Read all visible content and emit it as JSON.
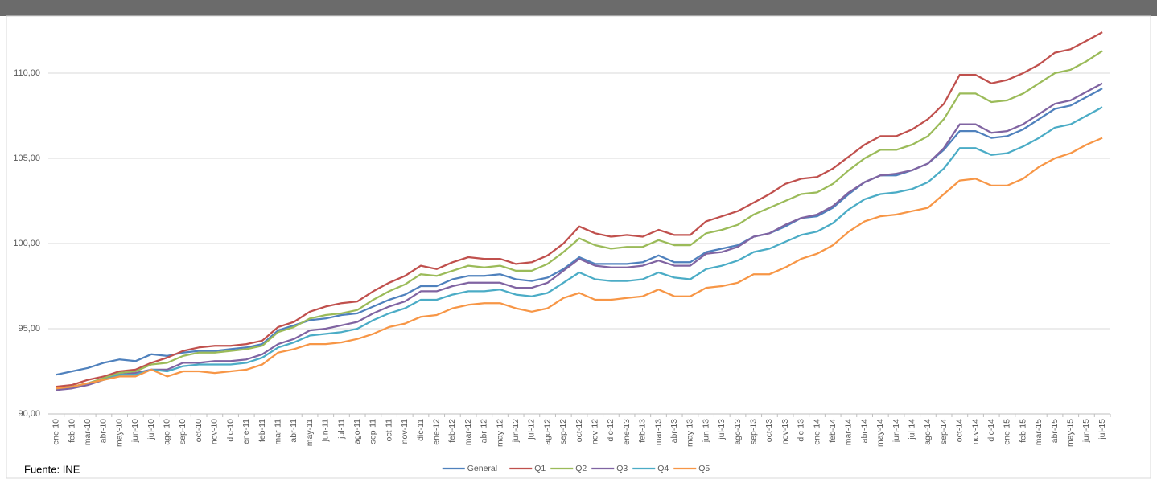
{
  "chart_data": {
    "type": "line",
    "categories": [
      "ene-10",
      "feb-10",
      "mar-10",
      "abr-10",
      "may-10",
      "jun-10",
      "jul-10",
      "ago-10",
      "sep-10",
      "oct-10",
      "nov-10",
      "dic-10",
      "ene-11",
      "feb-11",
      "mar-11",
      "abr-11",
      "may-11",
      "jun-11",
      "jul-11",
      "ago-11",
      "sep-11",
      "oct-11",
      "nov-11",
      "dic-11",
      "ene-12",
      "feb-12",
      "mar-12",
      "abr-12",
      "may-12",
      "jun-12",
      "jul-12",
      "ago-12",
      "sep-12",
      "oct-12",
      "nov-12",
      "dic-12",
      "ene-13",
      "feb-13",
      "mar-13",
      "abr-13",
      "may-13",
      "jun-13",
      "jul-13",
      "ago-13",
      "sep-13",
      "oct-13",
      "nov-13",
      "dic-13",
      "ene-14",
      "feb-14",
      "mar-14",
      "abr-14",
      "may-14",
      "jun-14",
      "jul-14",
      "ago-14",
      "sep-14",
      "oct-14",
      "nov-14",
      "dic-14",
      "ene-15",
      "feb-15",
      "mar-15",
      "abr-15",
      "may-15",
      "jun-15",
      "jul-15"
    ],
    "series": [
      {
        "name": "General",
        "color": "#4f81bd",
        "values": [
          92.3,
          92.5,
          92.7,
          93.0,
          93.2,
          93.1,
          93.5,
          93.4,
          93.6,
          93.7,
          93.7,
          93.8,
          93.9,
          94.1,
          94.9,
          95.2,
          95.5,
          95.6,
          95.8,
          95.9,
          96.3,
          96.7,
          97.0,
          97.5,
          97.5,
          97.9,
          98.1,
          98.1,
          98.2,
          97.9,
          97.8,
          98.0,
          98.5,
          99.2,
          98.8,
          98.8,
          98.8,
          98.9,
          99.3,
          98.9,
          98.9,
          99.5,
          99.7,
          99.9,
          100.4,
          100.6,
          101.0,
          101.5,
          101.6,
          102.1,
          102.9,
          103.6,
          104.0,
          104.0,
          104.3,
          104.7,
          105.5,
          106.6,
          106.6,
          106.2,
          106.3,
          106.7,
          107.3,
          107.9,
          108.1,
          108.6,
          109.1
        ]
      },
      {
        "name": "Q1",
        "color": "#c0504d",
        "values": [
          91.6,
          91.7,
          92.0,
          92.2,
          92.5,
          92.6,
          93.0,
          93.3,
          93.7,
          93.9,
          94.0,
          94.0,
          94.1,
          94.3,
          95.1,
          95.4,
          96.0,
          96.3,
          96.5,
          96.6,
          97.2,
          97.7,
          98.1,
          98.7,
          98.5,
          98.9,
          99.2,
          99.1,
          99.1,
          98.8,
          98.9,
          99.3,
          100.0,
          101.0,
          100.6,
          100.4,
          100.5,
          100.4,
          100.8,
          100.5,
          100.5,
          101.3,
          101.6,
          101.9,
          102.4,
          102.9,
          103.5,
          103.8,
          103.9,
          104.4,
          105.1,
          105.8,
          106.3,
          106.3,
          106.7,
          107.3,
          108.2,
          109.9,
          109.9,
          109.4,
          109.6,
          110.0,
          110.5,
          111.2,
          111.4,
          111.9,
          112.4
        ]
      },
      {
        "name": "Q2",
        "color": "#9bbb59",
        "values": [
          91.5,
          91.6,
          91.8,
          92.1,
          92.4,
          92.5,
          92.9,
          93.0,
          93.4,
          93.6,
          93.6,
          93.7,
          93.8,
          94.0,
          94.8,
          95.1,
          95.6,
          95.8,
          95.9,
          96.1,
          96.7,
          97.2,
          97.6,
          98.2,
          98.1,
          98.4,
          98.7,
          98.6,
          98.7,
          98.4,
          98.4,
          98.8,
          99.5,
          100.3,
          99.9,
          99.7,
          99.8,
          99.8,
          100.2,
          99.9,
          99.9,
          100.6,
          100.8,
          101.1,
          101.7,
          102.1,
          102.5,
          102.9,
          103.0,
          103.5,
          104.3,
          105.0,
          105.5,
          105.5,
          105.8,
          106.3,
          107.3,
          108.8,
          108.8,
          108.3,
          108.4,
          108.8,
          109.4,
          110.0,
          110.2,
          110.7,
          111.3
        ]
      },
      {
        "name": "Q3",
        "color": "#8064a2",
        "values": [
          91.4,
          91.5,
          91.7,
          92.0,
          92.3,
          92.4,
          92.6,
          92.6,
          93.0,
          93.0,
          93.1,
          93.1,
          93.2,
          93.5,
          94.1,
          94.4,
          94.9,
          95.0,
          95.2,
          95.4,
          95.9,
          96.3,
          96.6,
          97.2,
          97.2,
          97.5,
          97.7,
          97.7,
          97.7,
          97.4,
          97.4,
          97.7,
          98.4,
          99.1,
          98.7,
          98.6,
          98.6,
          98.7,
          99.0,
          98.7,
          98.7,
          99.4,
          99.5,
          99.8,
          100.4,
          100.6,
          101.1,
          101.5,
          101.7,
          102.2,
          103.0,
          103.6,
          104.0,
          104.1,
          104.3,
          104.7,
          105.6,
          107.0,
          107.0,
          106.5,
          106.6,
          107.0,
          107.6,
          108.2,
          108.4,
          108.9,
          109.4
        ]
      },
      {
        "name": "Q4",
        "color": "#4bacc6",
        "values": [
          91.5,
          91.6,
          91.8,
          92.0,
          92.3,
          92.3,
          92.6,
          92.5,
          92.8,
          92.9,
          92.9,
          92.9,
          93.0,
          93.3,
          93.9,
          94.2,
          94.6,
          94.7,
          94.8,
          95.0,
          95.5,
          95.9,
          96.2,
          96.7,
          96.7,
          97.0,
          97.2,
          97.2,
          97.3,
          97.0,
          96.9,
          97.1,
          97.7,
          98.3,
          97.9,
          97.8,
          97.8,
          97.9,
          98.3,
          98.0,
          97.9,
          98.5,
          98.7,
          99.0,
          99.5,
          99.7,
          100.1,
          100.5,
          100.7,
          101.2,
          102.0,
          102.6,
          102.9,
          103.0,
          103.2,
          103.6,
          104.4,
          105.6,
          105.6,
          105.2,
          105.3,
          105.7,
          106.2,
          106.8,
          107.0,
          107.5,
          108.0
        ]
      },
      {
        "name": "Q5",
        "color": "#f79646",
        "values": [
          91.5,
          91.6,
          91.8,
          92.0,
          92.2,
          92.2,
          92.6,
          92.2,
          92.5,
          92.5,
          92.4,
          92.5,
          92.6,
          92.9,
          93.6,
          93.8,
          94.1,
          94.1,
          94.2,
          94.4,
          94.7,
          95.1,
          95.3,
          95.7,
          95.8,
          96.2,
          96.4,
          96.5,
          96.5,
          96.2,
          96.0,
          96.2,
          96.8,
          97.1,
          96.7,
          96.7,
          96.8,
          96.9,
          97.3,
          96.9,
          96.9,
          97.4,
          97.5,
          97.7,
          98.2,
          98.2,
          98.6,
          99.1,
          99.4,
          99.9,
          100.7,
          101.3,
          101.6,
          101.7,
          101.9,
          102.1,
          102.9,
          103.7,
          103.8,
          103.4,
          103.4,
          103.8,
          104.5,
          105.0,
          105.3,
          105.8,
          106.2
        ]
      }
    ],
    "ylim": [
      90,
      112.5
    ],
    "yticks": [
      {
        "value": 90,
        "label": "90,00"
      },
      {
        "value": 95,
        "label": "95,00"
      },
      {
        "value": 100,
        "label": "100,00"
      },
      {
        "value": 105,
        "label": "105,00"
      },
      {
        "value": 110,
        "label": "110,00"
      }
    ],
    "grid": true,
    "legend": "bottom",
    "source": "Fuente: INE"
  }
}
